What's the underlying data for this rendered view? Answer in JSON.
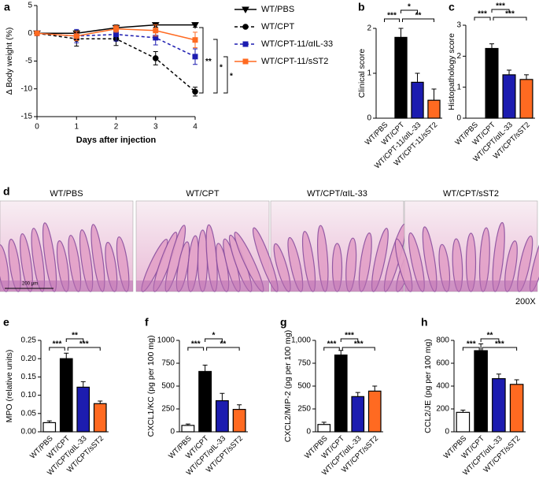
{
  "chart_data": [
    {
      "type": "line",
      "panel_label": "a",
      "xlabel": "Days after injection",
      "ylabel": "Δ Body weight (%)",
      "x": [
        0,
        1,
        2,
        3,
        4
      ],
      "xlim": [
        0,
        4
      ],
      "xticks": [
        0,
        1,
        2,
        3,
        4
      ],
      "ylim": [
        -15,
        5
      ],
      "yticks": [
        -15,
        -10,
        -5,
        0,
        5
      ],
      "series": [
        {
          "name": "WT/PBS",
          "color": "#000000",
          "marker": "triangle-down",
          "dashed": false,
          "values": [
            0,
            0,
            1,
            1.5,
            1.5
          ],
          "errors": [
            0,
            0.5,
            0.5,
            0.4,
            0.4
          ]
        },
        {
          "name": "WT/CPT",
          "color": "#000000",
          "marker": "circle",
          "dashed": true,
          "values": [
            0,
            -1,
            -1,
            -4.5,
            -10.5
          ],
          "errors": [
            0,
            1.3,
            1.2,
            1.2,
            0.8
          ]
        },
        {
          "name": "WT/CPT-11/αIL-33",
          "color": "#1c1cb0",
          "marker": "square",
          "dashed": true,
          "values": [
            0,
            -0.5,
            -0.2,
            -0.8,
            -4.2
          ],
          "errors": [
            0,
            1.2,
            1.2,
            1.3,
            1.4
          ]
        },
        {
          "name": "WT/CPT-11/sST2",
          "color": "#ff6a21",
          "marker": "square",
          "dashed": false,
          "values": [
            0,
            -0.5,
            0.8,
            0.5,
            -1.2
          ],
          "errors": [
            0,
            0.8,
            0.6,
            1.0,
            1.4
          ]
        }
      ],
      "annotations": [
        "**",
        "*",
        "*"
      ]
    },
    {
      "type": "bar",
      "panel_label": "b",
      "ylabel": "Clinical score",
      "categories": [
        "WT/PBS",
        "WT/CPT",
        "WT/CPT-11/αIL-33",
        "WT/CPT-11/sST2"
      ],
      "values": [
        0,
        1.8,
        0.8,
        0.4
      ],
      "errors": [
        0,
        0.2,
        0.2,
        0.25
      ],
      "colors": [
        "#ffffff",
        "#000000",
        "#1c1cb0",
        "#ff6a21"
      ],
      "ylim": [
        0,
        2
      ],
      "yticks": [
        0,
        1,
        2
      ],
      "significance": [
        "***",
        "*",
        "**"
      ]
    },
    {
      "type": "bar",
      "panel_label": "c",
      "ylabel": "Histopathology score",
      "categories": [
        "WT/PBS",
        "WT/CPT",
        "WT/CPT/αIL-33",
        "WT/CPT/sST2"
      ],
      "values": [
        0,
        2.25,
        1.4,
        1.25
      ],
      "errors": [
        0,
        0.15,
        0.15,
        0.15
      ],
      "colors": [
        "#ffffff",
        "#000000",
        "#1c1cb0",
        "#ff6a21"
      ],
      "ylim": [
        0,
        3
      ],
      "yticks": [
        0,
        1,
        2,
        3
      ],
      "significance": [
        "***",
        "***",
        "***"
      ]
    },
    {
      "type": "bar",
      "panel_label": "e",
      "ylabel": "MPO (relative units)",
      "categories": [
        "WT/PBS",
        "WT/CPT",
        "WT/CPT/αIL-33",
        "WT/CPT/sST2"
      ],
      "values": [
        0.025,
        0.2,
        0.122,
        0.077
      ],
      "errors": [
        0.005,
        0.015,
        0.015,
        0.007
      ],
      "colors": [
        "#ffffff",
        "#000000",
        "#1c1cb0",
        "#ff6a21"
      ],
      "ylim": [
        0,
        0.25
      ],
      "yticks": [
        {
          "value": 0,
          "label": "0.00"
        },
        {
          "value": 0.05,
          "label": "0.05"
        },
        {
          "value": 0.1,
          "label": "0.10"
        },
        {
          "value": 0.15,
          "label": "0.15"
        },
        {
          "value": 0.2,
          "label": "0.20"
        },
        {
          "value": 0.25,
          "label": "0.25"
        }
      ],
      "significance": [
        "***",
        "**",
        "***"
      ]
    },
    {
      "type": "bar",
      "panel_label": "f",
      "ylabel": "CXCL1/KC (pg per 100 mg)",
      "categories": [
        "WT/PBS",
        "WT/CPT",
        "WT/CPT/αIL-33",
        "WT/CPT/sST2"
      ],
      "values": [
        70,
        660,
        340,
        245
      ],
      "errors": [
        15,
        70,
        80,
        50
      ],
      "colors": [
        "#ffffff",
        "#000000",
        "#1c1cb0",
        "#ff6a21"
      ],
      "ylim": [
        0,
        1000
      ],
      "yticks": [
        0,
        250,
        500,
        750,
        1000
      ],
      "significance": [
        "***",
        "*",
        "**"
      ]
    },
    {
      "type": "bar",
      "panel_label": "g",
      "ylabel": "CXCL2/MIP-2 (pg per 100 mg)",
      "categories": [
        "WT/PBS",
        "WT/CPT",
        "WT/CPT/αIL-33",
        "WT/CPT/sST2"
      ],
      "values": [
        80,
        840,
        385,
        445
      ],
      "errors": [
        25,
        50,
        45,
        55
      ],
      "colors": [
        "#ffffff",
        "#000000",
        "#1c1cb0",
        "#ff6a21"
      ],
      "ylim": [
        0,
        1000
      ],
      "yticks": [
        0,
        250,
        500,
        750,
        {
          "value": 1000,
          "label": "1,000"
        }
      ],
      "significance": [
        "***",
        "***",
        "***"
      ]
    },
    {
      "type": "bar",
      "panel_label": "h",
      "ylabel": "CCL2/JE (pg per 100 mg)",
      "categories": [
        "WT/PBS",
        "WT/CPT",
        "WT/CPT/αIL-33",
        "WT/CPT/sST2"
      ],
      "values": [
        170,
        710,
        465,
        415
      ],
      "errors": [
        20,
        60,
        40,
        40
      ],
      "colors": [
        "#ffffff",
        "#000000",
        "#1c1cb0",
        "#ff6a21"
      ],
      "ylim": [
        0,
        800
      ],
      "yticks": [
        0,
        200,
        400,
        600,
        800
      ],
      "significance": [
        "***",
        "**",
        "***"
      ]
    }
  ],
  "micrographs": {
    "panel_label": "d",
    "titles": [
      "WT/PBS",
      "WT/CPT",
      "WT/CPT/αIL-33",
      "WT/CPT/sST2"
    ],
    "scale_bar": "200 μm",
    "magnification": "200X"
  }
}
